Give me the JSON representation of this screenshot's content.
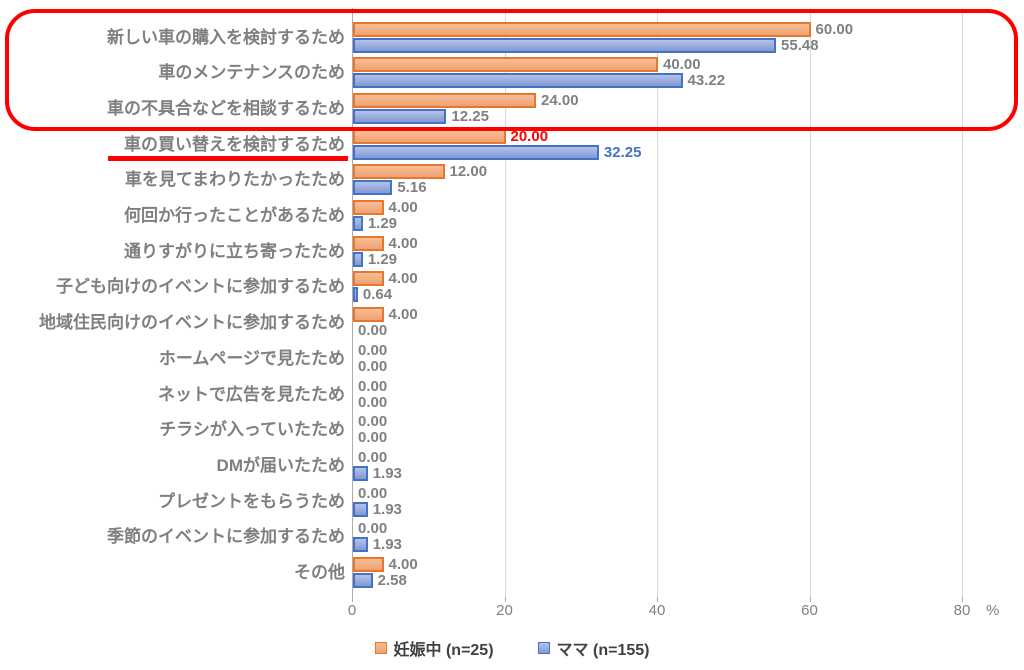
{
  "chart_data": {
    "type": "bar",
    "orientation": "horizontal",
    "title": "",
    "xlabel": "%",
    "xlim": [
      0,
      80
    ],
    "x_ticks": [
      0,
      20,
      40,
      60,
      80
    ],
    "grid": true,
    "legend_position": "bottom",
    "categories": [
      "新しい車の購入を検討するため",
      "車のメンテナンスのため",
      "車の不具合などを相談するため",
      "車の買い替えを検討するため",
      "車を見てまわりたかったため",
      "何回か行ったことがあるため",
      "通りすがりに立ち寄ったため",
      "子ども向けのイベントに参加するため",
      "地域住民向けのイベントに参加するため",
      "ホームページで見たため",
      "ネットで広告を見たため",
      "チラシが入っていたため",
      "DMが届いたため",
      "プレゼントをもらうため",
      "季節のイベントに参加するため",
      "その他"
    ],
    "series": [
      {
        "name": "妊娠中 (n=25)",
        "fill_top": "#F6BE97",
        "fill_bottom": "#EFA172",
        "border": "#E8772E",
        "values": [
          60.0,
          40.0,
          24.0,
          20.0,
          12.0,
          4.0,
          4.0,
          4.0,
          4.0,
          0.0,
          0.0,
          0.0,
          0.0,
          0.0,
          0.0,
          4.0
        ]
      },
      {
        "name": "ママ (n=155)",
        "fill_top": "#B4C2E7",
        "fill_bottom": "#8299D5",
        "border": "#4472C4",
        "values": [
          55.48,
          43.22,
          12.25,
          32.25,
          5.16,
          1.29,
          1.29,
          0.64,
          0.0,
          0.0,
          0.0,
          0.0,
          1.93,
          1.93,
          1.93,
          2.58
        ]
      }
    ],
    "annotations": {
      "annotation_color": "#FF0000",
      "red_box_category_range": [
        0,
        2
      ],
      "underlined_category_index": 3,
      "highlight_values": [
        {
          "category_index": 3,
          "series_index": 0,
          "color": "#FF0000"
        },
        {
          "category_index": 3,
          "series_index": 1,
          "color": "#4472C4"
        }
      ]
    }
  },
  "colors": {
    "category_label": "#7F7F7F",
    "value_label": "#808080",
    "tick_label": "#808080",
    "gridline": "#D9D9D9",
    "axis_line": "#AFABAB",
    "legend_text": "#404040"
  }
}
